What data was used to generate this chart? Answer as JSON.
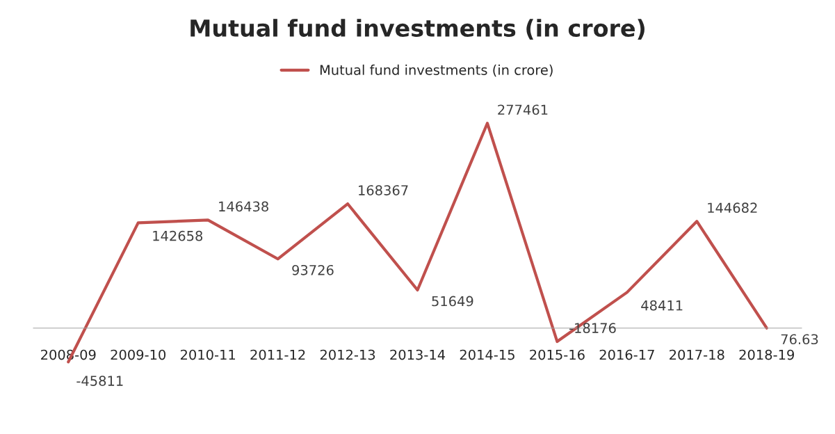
{
  "chart_data": {
    "type": "line",
    "title": "Mutual fund investments (in crore)",
    "categories": [
      "2008-09",
      "2009-10",
      "2010-11",
      "2011-12",
      "2012-13",
      "2013-14",
      "2014-15",
      "2015-16",
      "2016-17",
      "2017-18",
      "2018-19"
    ],
    "series": [
      {
        "name": "Mutual fund investments (in crore)",
        "color": "#c0504d",
        "values": [
          -45811,
          142658,
          146438,
          93726,
          168367,
          51649,
          277461,
          -18176,
          48411,
          144682,
          76.63
        ]
      }
    ],
    "data_labels": true,
    "legend": "top",
    "grid": false,
    "marker": "none",
    "line_style": "solid",
    "tick_labels": "x"
  }
}
